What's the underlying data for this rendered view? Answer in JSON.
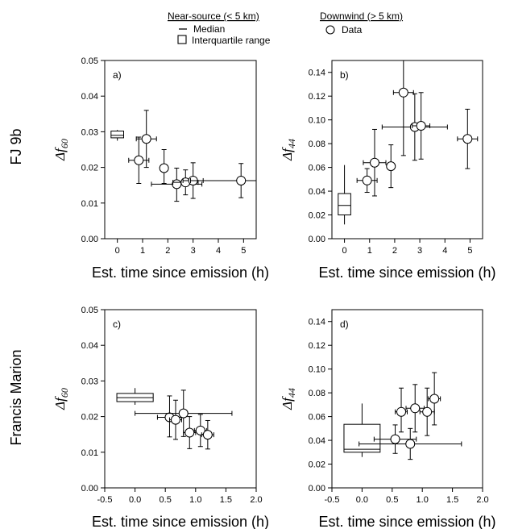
{
  "legend": {
    "near_title": "Near-source (< 5 km)",
    "downwind_title": "Downwind (> 5 km)",
    "median_label": "Median",
    "iqr_label": "Interquartile range",
    "data_label": "Data"
  },
  "row_labels": [
    "FJ 9b",
    "Francis Marion"
  ],
  "chart_data": [
    {
      "type": "scatter",
      "panel_label": "a)",
      "row": "FJ 9b",
      "xlabel": "Est. time since emission (h)",
      "ylabel_main": "Δf",
      "ylabel_sub": "60",
      "xlim": [
        -0.5,
        5.5
      ],
      "ylim": [
        0,
        0.05
      ],
      "xticks": [
        0,
        1,
        2,
        3,
        4,
        5
      ],
      "yticks": [
        0.0,
        0.01,
        0.02,
        0.03,
        0.04,
        0.05
      ],
      "ytick_labels": [
        "0.00",
        "0.01",
        "0.02",
        "0.03",
        "0.04",
        "0.05"
      ],
      "near_source_box": {
        "x": 0,
        "q1": 0.0283,
        "median": 0.029,
        "q3": 0.0302,
        "whisker_low": 0.0275,
        "whisker_high": 0.0305
      },
      "points": [
        {
          "x": 0.85,
          "y": 0.022,
          "xerr": 0.4,
          "yerr_low": 0.0065,
          "yerr_high": 0.0065
        },
        {
          "x": 1.15,
          "y": 0.028,
          "xerr": 0.4,
          "yerr_low": 0.008,
          "yerr_high": 0.008
        },
        {
          "x": 1.85,
          "y": 0.0198,
          "xerr": 0.15,
          "yerr_low": 0.0043,
          "yerr_high": 0.0052
        },
        {
          "x": 2.35,
          "y": 0.0153,
          "xerr": 1.0,
          "yerr_low": 0.0048,
          "yerr_high": 0.0045
        },
        {
          "x": 2.7,
          "y": 0.0158,
          "xerr": 0.5,
          "yerr_low": 0.0035,
          "yerr_high": 0.0035
        },
        {
          "x": 3.0,
          "y": 0.0163,
          "xerr": 0.4,
          "yerr_low": 0.005,
          "yerr_high": 0.005
        },
        {
          "x": 4.9,
          "y": 0.0163,
          "xerr": 2.0,
          "yerr_low": 0.0048,
          "yerr_high": 0.0048
        }
      ]
    },
    {
      "type": "scatter",
      "panel_label": "b)",
      "row": "FJ 9b",
      "xlabel": "Est. time since emission (h)",
      "ylabel_main": "Δf",
      "ylabel_sub": "44",
      "xlim": [
        -0.5,
        5.5
      ],
      "ylim": [
        0,
        0.15
      ],
      "xticks": [
        0,
        1,
        2,
        3,
        4,
        5
      ],
      "yticks": [
        0.0,
        0.02,
        0.04,
        0.06,
        0.08,
        0.1,
        0.12,
        0.14
      ],
      "ytick_labels": [
        "0.00",
        "0.02",
        "0.04",
        "0.06",
        "0.08",
        "0.10",
        "0.12",
        "0.14"
      ],
      "near_source_box": {
        "x": 0,
        "q1": 0.02,
        "median": 0.028,
        "q3": 0.038,
        "whisker_low": 0.012,
        "whisker_high": 0.062
      },
      "points": [
        {
          "x": 0.9,
          "y": 0.049,
          "xerr": 0.4,
          "yerr_low": 0.01,
          "yerr_high": 0.01
        },
        {
          "x": 1.2,
          "y": 0.064,
          "xerr": 0.45,
          "yerr_low": 0.028,
          "yerr_high": 0.028
        },
        {
          "x": 1.85,
          "y": 0.061,
          "xerr": 0.1,
          "yerr_low": 0.018,
          "yerr_high": 0.018
        },
        {
          "x": 2.35,
          "y": 0.123,
          "xerr": 0.4,
          "yerr_low": 0.053,
          "yerr_high": 0.03
        },
        {
          "x": 2.8,
          "y": 0.094,
          "xerr": 1.3,
          "yerr_low": 0.028,
          "yerr_high": 0.028
        },
        {
          "x": 3.05,
          "y": 0.095,
          "xerr": 0.35,
          "yerr_low": 0.028,
          "yerr_high": 0.028
        },
        {
          "x": 4.9,
          "y": 0.084,
          "xerr": 0.4,
          "yerr_low": 0.025,
          "yerr_high": 0.025
        }
      ]
    },
    {
      "type": "scatter",
      "panel_label": "c)",
      "row": "Francis Marion",
      "xlabel": "Est. time since emission (h)",
      "ylabel_main": "Δf",
      "ylabel_sub": "60",
      "xlim": [
        -0.5,
        2.0
      ],
      "ylim": [
        0,
        0.05
      ],
      "xticks": [
        -0.5,
        0.0,
        0.5,
        1.0,
        1.5,
        2.0
      ],
      "xtick_labels": [
        "-0.5",
        "0.0",
        "0.5",
        "1.0",
        "1.5",
        "2.0"
      ],
      "yticks": [
        0.0,
        0.01,
        0.02,
        0.03,
        0.04,
        0.05
      ],
      "ytick_labels": [
        "0.00",
        "0.01",
        "0.02",
        "0.03",
        "0.04",
        "0.05"
      ],
      "near_source_box": {
        "x": 0,
        "q1": 0.0242,
        "median": 0.0253,
        "q3": 0.0265,
        "whisker_low": 0.0233,
        "whisker_high": 0.028
      },
      "points": [
        {
          "x": 0.57,
          "y": 0.0198,
          "xerr": 0.2,
          "yerr_low": 0.0055,
          "yerr_high": 0.006
        },
        {
          "x": 0.67,
          "y": 0.0191,
          "xerr": 0.1,
          "yerr_low": 0.0055,
          "yerr_high": 0.0055
        },
        {
          "x": 0.8,
          "y": 0.0209,
          "xerr": 0.8,
          "yerr_low": 0.0065,
          "yerr_high": 0.0065
        },
        {
          "x": 0.9,
          "y": 0.0155,
          "xerr": 0.1,
          "yerr_low": 0.0045,
          "yerr_high": 0.0045
        },
        {
          "x": 1.08,
          "y": 0.0161,
          "xerr": 0.1,
          "yerr_low": 0.0045,
          "yerr_high": 0.0045
        },
        {
          "x": 1.2,
          "y": 0.0149,
          "xerr": 0.1,
          "yerr_low": 0.004,
          "yerr_high": 0.004
        }
      ]
    },
    {
      "type": "scatter",
      "panel_label": "d)",
      "row": "Francis Marion",
      "xlabel": "Est. time since emission (h)",
      "ylabel_main": "Δf",
      "ylabel_sub": "44",
      "xlim": [
        -0.5,
        2.0
      ],
      "ylim": [
        0,
        0.15
      ],
      "xticks": [
        -0.5,
        0.0,
        0.5,
        1.0,
        1.5,
        2.0
      ],
      "xtick_labels": [
        "-0.5",
        "0.0",
        "0.5",
        "1.0",
        "1.5",
        "2.0"
      ],
      "yticks": [
        0.0,
        0.02,
        0.04,
        0.06,
        0.08,
        0.1,
        0.12,
        0.14
      ],
      "ytick_labels": [
        "0.00",
        "0.02",
        "0.04",
        "0.06",
        "0.08",
        "0.10",
        "0.12",
        "0.14"
      ],
      "near_source_box": {
        "x": 0,
        "q1": 0.03,
        "median": 0.0325,
        "q3": 0.0535,
        "whisker_low": 0.026,
        "whisker_high": 0.071
      },
      "points": [
        {
          "x": 0.55,
          "y": 0.041,
          "xerr": 0.35,
          "yerr_low": 0.012,
          "yerr_high": 0.012
        },
        {
          "x": 0.65,
          "y": 0.064,
          "xerr": 0.1,
          "yerr_low": 0.017,
          "yerr_high": 0.02
        },
        {
          "x": 0.8,
          "y": 0.037,
          "xerr": 0.85,
          "yerr_low": 0.013,
          "yerr_high": 0.013
        },
        {
          "x": 0.88,
          "y": 0.067,
          "xerr": 0.15,
          "yerr_low": 0.02,
          "yerr_high": 0.02
        },
        {
          "x": 1.08,
          "y": 0.064,
          "xerr": 0.12,
          "yerr_low": 0.02,
          "yerr_high": 0.02
        },
        {
          "x": 1.2,
          "y": 0.075,
          "xerr": 0.1,
          "yerr_low": 0.022,
          "yerr_high": 0.022
        }
      ]
    }
  ]
}
